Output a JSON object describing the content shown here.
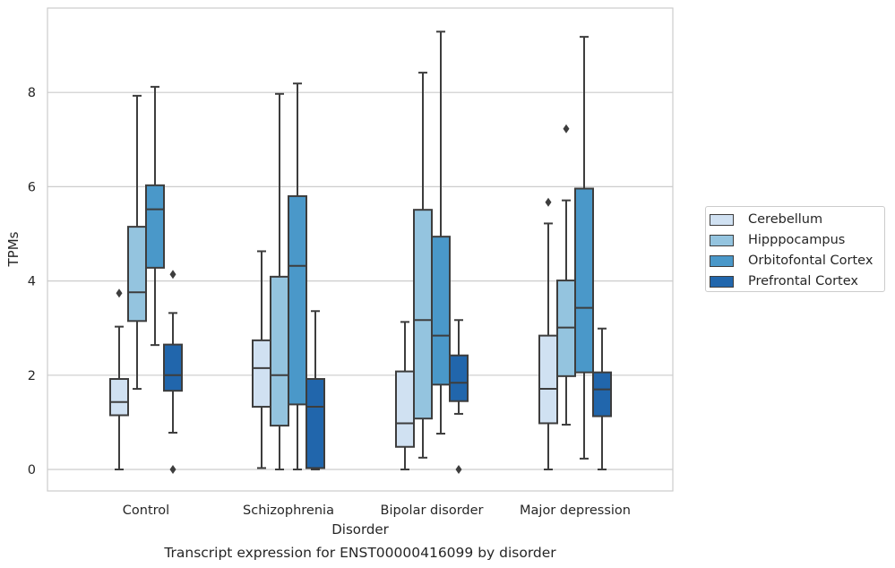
{
  "chart_data": {
    "type": "box",
    "title": "Transcript expression for ENST00000416099 by disorder",
    "xlabel": "Disorder",
    "ylabel": "TPMs",
    "ylim": [
      -0.45,
      9.65
    ],
    "yticks": [
      0,
      2,
      4,
      6,
      8
    ],
    "categories": [
      "Control",
      "Schizophrenia",
      "Bipolar disorder",
      "Major depression"
    ],
    "grid": "horizontal",
    "legend_position": "right",
    "series": [
      {
        "name": "Cerebellum",
        "color": "#d0e1f2",
        "boxes": [
          {
            "whisker_low": 0.0,
            "q1": 1.15,
            "median": 1.43,
            "q3": 1.92,
            "whisker_high": 3.03,
            "outliers": [
              3.74
            ]
          },
          {
            "whisker_low": 0.03,
            "q1": 1.33,
            "median": 2.15,
            "q3": 2.74,
            "whisker_high": 4.63,
            "outliers": []
          },
          {
            "whisker_low": 0.0,
            "q1": 0.48,
            "median": 0.98,
            "q3": 2.08,
            "whisker_high": 3.13,
            "outliers": []
          },
          {
            "whisker_low": 0.0,
            "q1": 0.98,
            "median": 1.71,
            "q3": 2.84,
            "whisker_high": 5.22,
            "outliers": [
              5.67
            ]
          }
        ]
      },
      {
        "name": "Hipppocampus",
        "color": "#94c4df",
        "boxes": [
          {
            "whisker_low": 1.71,
            "q1": 3.15,
            "median": 3.76,
            "q3": 5.15,
            "whisker_high": 7.93,
            "outliers": []
          },
          {
            "whisker_low": 0.0,
            "q1": 0.93,
            "median": 2.0,
            "q3": 4.09,
            "whisker_high": 7.97,
            "outliers": []
          },
          {
            "whisker_low": 0.25,
            "q1": 1.08,
            "median": 3.17,
            "q3": 5.51,
            "whisker_high": 8.42,
            "outliers": []
          },
          {
            "whisker_low": 0.95,
            "q1": 1.98,
            "median": 3.01,
            "q3": 4.01,
            "whisker_high": 5.71,
            "outliers": [
              7.23
            ]
          }
        ]
      },
      {
        "name": "Orbitofontal Cortex",
        "color": "#4a98c9",
        "boxes": [
          {
            "whisker_low": 2.64,
            "q1": 4.28,
            "median": 5.52,
            "q3": 6.03,
            "whisker_high": 8.12,
            "outliers": []
          },
          {
            "whisker_low": 0.0,
            "q1": 1.38,
            "median": 4.32,
            "q3": 5.8,
            "whisker_high": 8.19,
            "outliers": []
          },
          {
            "whisker_low": 0.76,
            "q1": 1.8,
            "median": 2.84,
            "q3": 4.94,
            "whisker_high": 9.29,
            "outliers": []
          },
          {
            "whisker_low": 0.23,
            "q1": 2.06,
            "median": 3.43,
            "q3": 5.96,
            "whisker_high": 9.18,
            "outliers": []
          }
        ]
      },
      {
        "name": "Prefrontal Cortex",
        "color": "#2166ac",
        "boxes": [
          {
            "whisker_low": 0.78,
            "q1": 1.67,
            "median": 2.0,
            "q3": 2.65,
            "whisker_high": 3.32,
            "outliers": [
              0.0,
              4.14
            ]
          },
          {
            "whisker_low": 0.0,
            "q1": 0.03,
            "median": 1.33,
            "q3": 1.92,
            "whisker_high": 3.36,
            "outliers": []
          },
          {
            "whisker_low": 1.18,
            "q1": 1.45,
            "median": 1.84,
            "q3": 2.42,
            "whisker_high": 3.17,
            "outliers": [
              0.0
            ]
          },
          {
            "whisker_low": 0.0,
            "q1": 1.13,
            "median": 1.7,
            "q3": 2.06,
            "whisker_high": 2.99,
            "outliers": []
          }
        ]
      }
    ]
  }
}
